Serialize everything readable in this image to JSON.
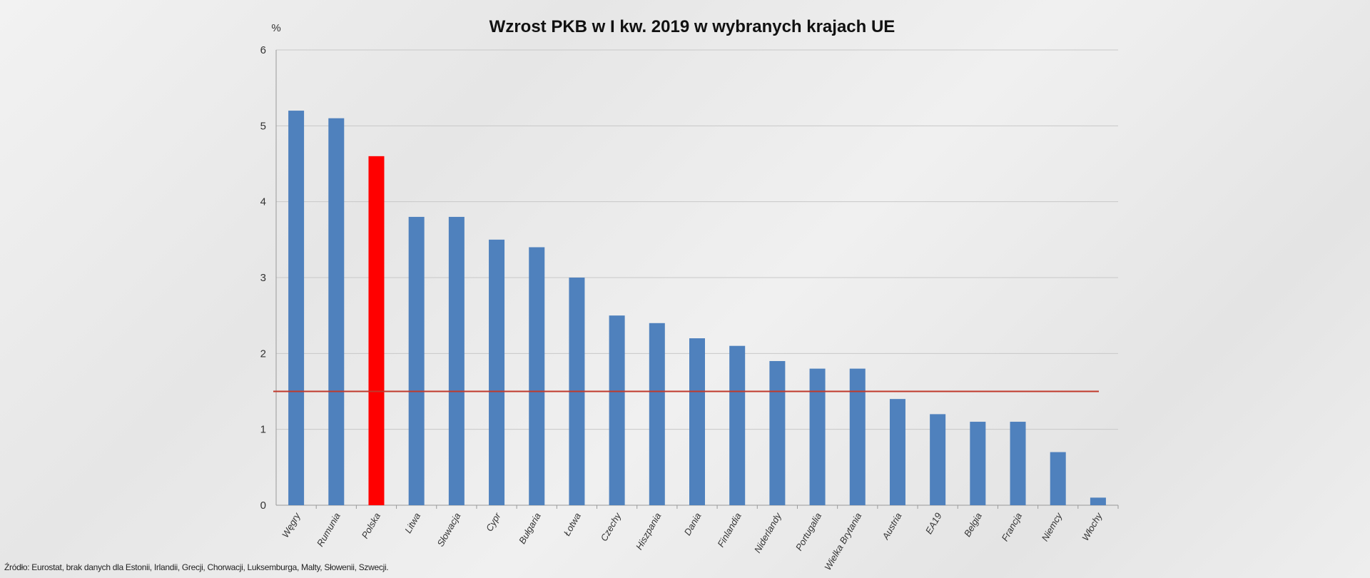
{
  "chart_data": {
    "type": "bar",
    "title": "Wzrost PKB w I kw. 2019 w wybranych krajach UE",
    "ylabel": "%",
    "xlabel": "",
    "ylim": [
      0,
      6
    ],
    "yticks": [
      0,
      1,
      2,
      3,
      4,
      5,
      6
    ],
    "grid": true,
    "categories": [
      "Węgry",
      "Rumunia",
      "Polska",
      "Litwa",
      "Słowacja",
      "Cypr",
      "Bułgaria",
      "Łotwa",
      "Czechy",
      "Hiszpania",
      "Dania",
      "Finlandia",
      "Niderlandy",
      "Portugalia",
      "Wielka Brytania",
      "Austria",
      "EA19",
      "Belgia",
      "Francja",
      "Niemcy",
      "Włochy"
    ],
    "values": [
      5.2,
      5.1,
      4.6,
      3.8,
      3.8,
      3.5,
      3.4,
      3.0,
      2.5,
      2.4,
      2.2,
      2.1,
      1.9,
      1.8,
      1.8,
      1.4,
      1.2,
      1.1,
      1.1,
      0.7,
      0.1
    ],
    "highlight_category": "Polska",
    "colors": {
      "bar": "#4f81bd",
      "highlight": "#ff0000",
      "reference_line": "#c0392b"
    },
    "reference_line": 1.5
  },
  "footer": "Źródło: Eurostat, brak danych dla Estonii, Irlandii, Grecji, Chorwacji, Luksemburga, Malty, Słowenii, Szwecji."
}
